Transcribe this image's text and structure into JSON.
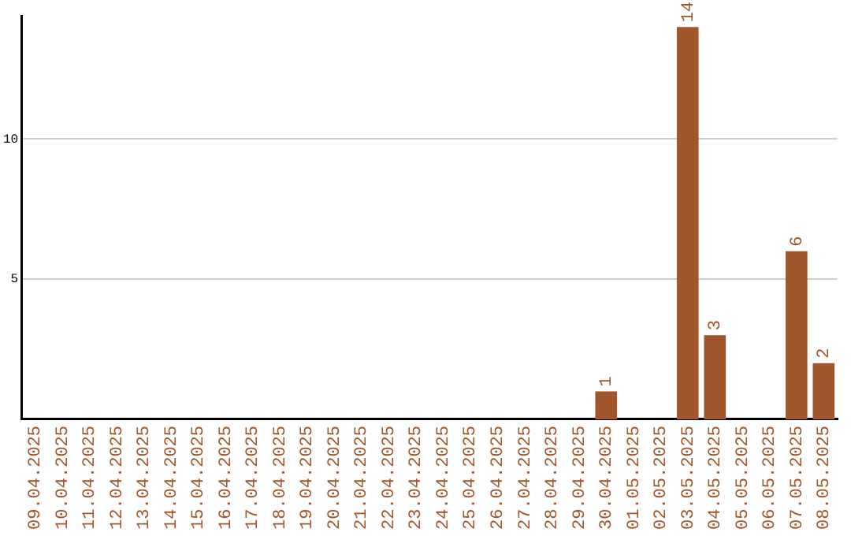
{
  "chart_data": {
    "type": "bar",
    "categories": [
      "09.04.2025",
      "10.04.2025",
      "11.04.2025",
      "12.04.2025",
      "13.04.2025",
      "14.04.2025",
      "15.04.2025",
      "16.04.2025",
      "17.04.2025",
      "18.04.2025",
      "19.04.2025",
      "20.04.2025",
      "21.04.2025",
      "22.04.2025",
      "23.04.2025",
      "24.04.2025",
      "25.04.2025",
      "26.04.2025",
      "27.04.2025",
      "28.04.2025",
      "29.04.2025",
      "30.04.2025",
      "01.05.2025",
      "02.05.2025",
      "03.05.2025",
      "04.05.2025",
      "05.05.2025",
      "06.05.2025",
      "07.05.2025",
      "08.05.2025"
    ],
    "values": [
      null,
      null,
      null,
      null,
      null,
      null,
      null,
      null,
      null,
      null,
      null,
      null,
      null,
      null,
      null,
      null,
      null,
      null,
      null,
      null,
      null,
      1,
      null,
      null,
      14,
      3,
      null,
      null,
      6,
      2
    ],
    "color": "#a0562a",
    "ylim": [
      0,
      14.4
    ],
    "yticks": [
      5,
      10
    ],
    "grid": "y",
    "data_labels": true,
    "legend": false
  }
}
